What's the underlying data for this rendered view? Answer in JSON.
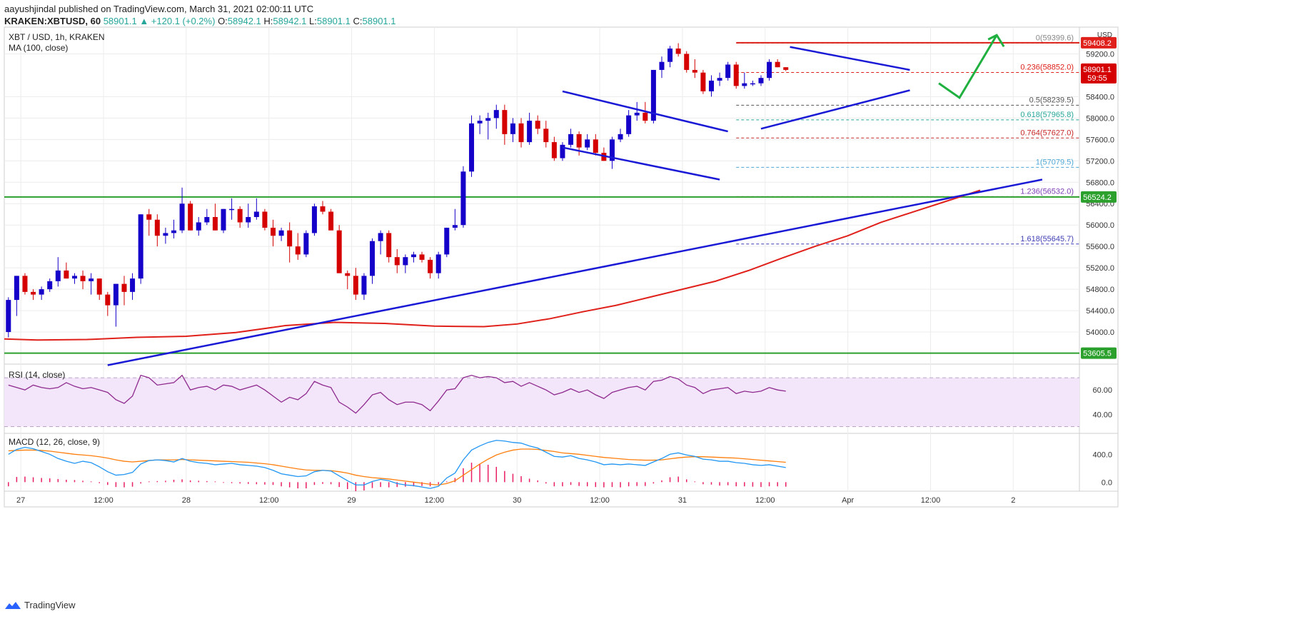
{
  "header": {
    "line1": "aayushjindal published on TradingView.com, March 31, 2021 02:00:11 UTC",
    "symbol": "KRAKEN:XBTUSD, 60",
    "last": "58901.1",
    "change": "▲ +120.1 (+0.2%)",
    "o_label": "O:",
    "o": "58942.1",
    "h_label": "H:",
    "h": "58942.1",
    "l_label": "L:",
    "l": "58901.1",
    "c_label": "C:",
    "c": "58901.1"
  },
  "footer": {
    "brand": "TradingView"
  },
  "colors": {
    "up": "#1400c8",
    "down": "#d50000",
    "ma": "#e0201a",
    "trend": "#1a1ad6",
    "green": "#2ca02c",
    "arrow": "#20b040",
    "rsi": "#8e2a8e",
    "macd": "#2196f3",
    "signal": "#ff7f0e",
    "hist": "#e91e63"
  },
  "chart_data": {
    "type": "candlestick",
    "title": "XBT / USD, 1h, KRAKEN",
    "indicator_label": "MA (100, close)",
    "currency": "USD",
    "ylim": [
      53400,
      59700
    ],
    "yticks": [
      54000,
      54400,
      54800,
      55200,
      55600,
      56000,
      56400,
      56800,
      57200,
      57600,
      58000,
      58400,
      59200
    ],
    "xlim": [
      0,
      130
    ],
    "xticks": [
      {
        "x": 2,
        "label": "27"
      },
      {
        "x": 12,
        "label": "12:00"
      },
      {
        "x": 22,
        "label": "28"
      },
      {
        "x": 32,
        "label": "12:00"
      },
      {
        "x": 42,
        "label": "29"
      },
      {
        "x": 52,
        "label": "12:00"
      },
      {
        "x": 62,
        "label": "30"
      },
      {
        "x": 72,
        "label": "12:00"
      },
      {
        "x": 82,
        "label": "31"
      },
      {
        "x": 92,
        "label": "12:00"
      },
      {
        "x": 102,
        "label": "Apr"
      },
      {
        "x": 112,
        "label": "12:00"
      },
      {
        "x": 122,
        "label": "2"
      }
    ],
    "candles": [
      [
        54000,
        54650,
        53900,
        54600
      ],
      [
        54600,
        55050,
        54300,
        55050
      ],
      [
        55050,
        55100,
        54700,
        54750
      ],
      [
        54750,
        54800,
        54600,
        54700
      ],
      [
        54700,
        54850,
        54600,
        54800
      ],
      [
        54800,
        55000,
        54750,
        54950
      ],
      [
        54950,
        55400,
        54850,
        55150
      ],
      [
        55150,
        55300,
        55000,
        55000
      ],
      [
        55000,
        55100,
        54900,
        55050
      ],
      [
        55050,
        55150,
        54800,
        54950
      ],
      [
        54950,
        55100,
        54700,
        55000
      ],
      [
        55000,
        55000,
        54600,
        54700
      ],
      [
        54700,
        54750,
        54300,
        54500
      ],
      [
        54500,
        54900,
        54100,
        54900
      ],
      [
        54900,
        55050,
        54500,
        54750
      ],
      [
        54750,
        55100,
        54600,
        55000
      ],
      [
        55000,
        56200,
        54900,
        56200
      ],
      [
        56200,
        56300,
        55800,
        56100
      ],
      [
        56100,
        56200,
        55600,
        55800
      ],
      [
        55800,
        55950,
        55650,
        55850
      ],
      [
        55850,
        56100,
        55750,
        55900
      ],
      [
        55900,
        56700,
        55850,
        56400
      ],
      [
        56400,
        56450,
        55900,
        55900
      ],
      [
        55900,
        56150,
        55800,
        56050
      ],
      [
        56050,
        56300,
        56000,
        56150
      ],
      [
        56150,
        56400,
        55900,
        55900
      ],
      [
        55900,
        56300,
        55850,
        56300
      ],
      [
        56300,
        56500,
        56100,
        56300
      ],
      [
        56300,
        56350,
        55950,
        56050
      ],
      [
        56050,
        56400,
        55950,
        56150
      ],
      [
        56150,
        56500,
        56100,
        56250
      ],
      [
        56250,
        56300,
        55900,
        55950
      ],
      [
        55950,
        56100,
        55600,
        55800
      ],
      [
        55800,
        55950,
        55700,
        55900
      ],
      [
        55900,
        56050,
        55300,
        55600
      ],
      [
        55600,
        55850,
        55350,
        55450
      ],
      [
        55450,
        55900,
        55400,
        55850
      ],
      [
        55850,
        56400,
        55800,
        56350
      ],
      [
        56350,
        56450,
        56200,
        56250
      ],
      [
        56250,
        56300,
        55900,
        55900
      ],
      [
        55900,
        56000,
        55100,
        55100
      ],
      [
        55100,
        55150,
        54800,
        55050
      ],
      [
        55050,
        55200,
        54600,
        54700
      ],
      [
        54700,
        55100,
        54600,
        55050
      ],
      [
        55050,
        55750,
        54900,
        55700
      ],
      [
        55700,
        55900,
        55450,
        55850
      ],
      [
        55850,
        55900,
        55300,
        55400
      ],
      [
        55400,
        55550,
        55100,
        55250
      ],
      [
        55250,
        55450,
        55100,
        55400
      ],
      [
        55400,
        55500,
        55300,
        55450
      ],
      [
        55450,
        55500,
        55300,
        55350
      ],
      [
        55350,
        55400,
        55000,
        55100
      ],
      [
        55100,
        55500,
        55000,
        55450
      ],
      [
        55450,
        55950,
        55400,
        55950
      ],
      [
        55950,
        56300,
        55900,
        56000
      ],
      [
        56000,
        57100,
        55950,
        57000
      ],
      [
        57000,
        58050,
        56900,
        57900
      ],
      [
        57900,
        58050,
        57700,
        57950
      ],
      [
        57950,
        58100,
        57600,
        58000
      ],
      [
        58000,
        58250,
        57800,
        58150
      ],
      [
        58150,
        58250,
        57500,
        57700
      ],
      [
        57700,
        58000,
        57550,
        57900
      ],
      [
        57900,
        58000,
        57450,
        57550
      ],
      [
        57550,
        58100,
        57500,
        57950
      ],
      [
        57950,
        58050,
        57700,
        57800
      ],
      [
        57800,
        57950,
        57450,
        57550
      ],
      [
        57550,
        57650,
        57200,
        57250
      ],
      [
        57250,
        57550,
        57200,
        57500
      ],
      [
        57500,
        57800,
        57450,
        57700
      ],
      [
        57700,
        57750,
        57300,
        57450
      ],
      [
        57450,
        57700,
        57400,
        57600
      ],
      [
        57600,
        57700,
        57300,
        57350
      ],
      [
        57350,
        57450,
        57200,
        57200
      ],
      [
        57200,
        57650,
        57050,
        57600
      ],
      [
        57600,
        57800,
        57550,
        57700
      ],
      [
        57700,
        58150,
        57650,
        58050
      ],
      [
        58050,
        58300,
        57950,
        58100
      ],
      [
        58100,
        58300,
        57900,
        57950
      ],
      [
        57950,
        58900,
        57900,
        58900
      ],
      [
        58900,
        59150,
        58750,
        59050
      ],
      [
        59050,
        59350,
        58950,
        59300
      ],
      [
        59300,
        59400,
        59150,
        59200
      ],
      [
        59200,
        59250,
        58850,
        58900
      ],
      [
        58900,
        59100,
        58750,
        58850
      ],
      [
        58850,
        58900,
        58450,
        58500
      ],
      [
        58500,
        58800,
        58400,
        58700
      ],
      [
        58700,
        58850,
        58600,
        58750
      ],
      [
        58750,
        59050,
        58700,
        59000
      ],
      [
        59000,
        59050,
        58550,
        58600
      ],
      [
        58600,
        58850,
        58550,
        58650
      ],
      [
        58650,
        58700,
        58600,
        58650
      ],
      [
        58650,
        58800,
        58600,
        58750
      ],
      [
        58750,
        59100,
        58700,
        59050
      ],
      [
        59050,
        59100,
        58950,
        58950
      ],
      [
        58950,
        58950,
        58880,
        58901
      ]
    ],
    "ma100": [
      [
        0,
        53870
      ],
      [
        4,
        53850
      ],
      [
        10,
        53860
      ],
      [
        16,
        53900
      ],
      [
        22,
        53920
      ],
      [
        28,
        53990
      ],
      [
        34,
        54120
      ],
      [
        40,
        54180
      ],
      [
        46,
        54160
      ],
      [
        52,
        54110
      ],
      [
        58,
        54100
      ],
      [
        62,
        54150
      ],
      [
        66,
        54250
      ],
      [
        70,
        54380
      ],
      [
        74,
        54500
      ],
      [
        78,
        54650
      ],
      [
        82,
        54800
      ],
      [
        86,
        54950
      ],
      [
        90,
        55150
      ],
      [
        94,
        55380
      ],
      [
        98,
        55600
      ],
      [
        102,
        55800
      ],
      [
        106,
        56050
      ],
      [
        110,
        56250
      ],
      [
        114,
        56450
      ],
      [
        118,
        56650
      ]
    ],
    "trendlines": [
      {
        "name": "rising-support",
        "from": [
          12.5,
          53380
        ],
        "to": [
          125.5,
          56850
        ]
      },
      {
        "name": "channel-upper",
        "from": [
          67.5,
          58500
        ],
        "to": [
          87.5,
          57750
        ]
      },
      {
        "name": "channel-lower",
        "from": [
          67.5,
          57450
        ],
        "to": [
          86.5,
          56850
        ]
      },
      {
        "name": "triangle-upper",
        "from": [
          95,
          59330
        ],
        "to": [
          109.5,
          58900
        ]
      },
      {
        "name": "triangle-lower",
        "from": [
          91.5,
          57800
        ],
        "to": [
          109.5,
          58520
        ]
      }
    ],
    "horizontal_levels": [
      {
        "name": "resistance",
        "value": 59408.2,
        "label": "59408.2",
        "color": "#e0201a"
      },
      {
        "name": "support-high",
        "value": 56524.2,
        "label": "56524.2",
        "color": "#2ca02c"
      },
      {
        "name": "support-low",
        "value": 53605.5,
        "label": "53605.5",
        "color": "#2ca02c"
      }
    ],
    "price_tag": {
      "value": 58901.1,
      "label": "58901.1",
      "countdown": "59:55"
    },
    "fibonacci": [
      {
        "ratio": "0",
        "value": 59399.6,
        "label": "0(59399.6)",
        "color": "#888888"
      },
      {
        "ratio": "0.236",
        "value": 58852.0,
        "label": "0.236(58852.0)",
        "color": "#e0201a"
      },
      {
        "ratio": "0.5",
        "value": 58239.5,
        "label": "0.5(58239.5)",
        "color": "#555555"
      },
      {
        "ratio": "0.618",
        "value": 57965.8,
        "label": "0.618(57965.8)",
        "color": "#26a69a"
      },
      {
        "ratio": "0.764",
        "value": 57627.0,
        "label": "0.764(57627.0)",
        "color": "#c62828"
      },
      {
        "ratio": "1",
        "value": 57079.5,
        "label": "1(57079.5)",
        "color": "#4fa8d8"
      },
      {
        "ratio": "1.236",
        "value": 56532.0,
        "label": "1.236(56532.0)",
        "color": "#7b3fb5"
      },
      {
        "ratio": "1.618",
        "value": 55645.7,
        "label": "1.618(55645.7)",
        "color": "#3f3fb5"
      }
    ],
    "forecast_arrow": {
      "from": [
        113,
        58650
      ],
      "mid": [
        115.5,
        58380
      ],
      "to": [
        120,
        59550
      ]
    },
    "rsi": {
      "label": "RSI (14, close)",
      "ylim": [
        25,
        80
      ],
      "yticks": [
        40,
        60
      ],
      "band": [
        30,
        70
      ],
      "values": [
        64,
        62,
        60,
        64,
        62,
        61,
        62,
        66,
        63,
        61,
        62,
        60,
        58,
        52,
        49,
        55,
        72,
        70,
        64,
        65,
        66,
        72,
        60,
        62,
        63,
        60,
        64,
        63,
        60,
        62,
        64,
        60,
        55,
        50,
        54,
        52,
        57,
        67,
        64,
        62,
        50,
        46,
        41,
        48,
        56,
        58,
        52,
        48,
        50,
        50,
        48,
        43,
        51,
        60,
        61,
        70,
        72,
        70,
        71,
        70,
        66,
        67,
        63,
        66,
        63,
        60,
        56,
        58,
        61,
        58,
        60,
        56,
        53,
        58,
        60,
        62,
        63,
        60,
        67,
        68,
        71,
        69,
        64,
        62,
        57,
        60,
        61,
        62,
        57,
        59,
        58,
        59,
        62,
        60,
        59
      ]
    },
    "macd": {
      "label": "MACD (12, 26, close, 9)",
      "ylim": [
        -130,
        690
      ],
      "yticks": [
        0,
        400
      ],
      "macd": [
        400,
        470,
        500,
        480,
        440,
        400,
        340,
        300,
        270,
        300,
        280,
        220,
        150,
        100,
        110,
        140,
        260,
        310,
        320,
        310,
        290,
        340,
        300,
        280,
        270,
        250,
        260,
        270,
        250,
        240,
        230,
        210,
        170,
        120,
        100,
        80,
        90,
        150,
        170,
        160,
        90,
        20,
        -40,
        -40,
        10,
        40,
        20,
        -20,
        -40,
        -50,
        -70,
        -90,
        -60,
        60,
        130,
        320,
        460,
        520,
        570,
        600,
        590,
        570,
        560,
        520,
        490,
        430,
        370,
        360,
        380,
        340,
        320,
        290,
        250,
        260,
        250,
        260,
        250,
        240,
        290,
        340,
        400,
        420,
        390,
        370,
        330,
        320,
        300,
        300,
        280,
        270,
        250,
        240,
        250,
        230,
        210
      ],
      "signal": [
        450,
        455,
        460,
        460,
        455,
        445,
        430,
        415,
        400,
        390,
        380,
        365,
        345,
        320,
        300,
        290,
        300,
        310,
        320,
        320,
        320,
        325,
        320,
        315,
        310,
        305,
        300,
        295,
        290,
        285,
        275,
        265,
        250,
        230,
        210,
        190,
        175,
        170,
        170,
        165,
        150,
        130,
        100,
        80,
        65,
        55,
        45,
        30,
        15,
        0,
        -15,
        -30,
        -40,
        -20,
        20,
        100,
        180,
        260,
        330,
        390,
        430,
        460,
        475,
        475,
        470,
        455,
        440,
        420,
        410,
        400,
        385,
        370,
        355,
        345,
        335,
        325,
        320,
        315,
        315,
        320,
        335,
        350,
        360,
        365,
        365,
        360,
        355,
        350,
        345,
        335,
        325,
        315,
        305,
        295,
        285
      ],
      "hist": [
        -60,
        75,
        80,
        70,
        60,
        55,
        45,
        35,
        30,
        20,
        10,
        -15,
        -40,
        -70,
        -75,
        -65,
        -20,
        10,
        15,
        20,
        35,
        40,
        25,
        20,
        15,
        10,
        -10,
        -15,
        -20,
        -25,
        -30,
        -35,
        -40,
        -60,
        -75,
        -90,
        -90,
        -40,
        -25,
        -30,
        -70,
        -100,
        -130,
        -120,
        -85,
        -70,
        -75,
        -70,
        -65,
        -60,
        -55,
        -60,
        -30,
        10,
        60,
        200,
        280,
        260,
        250,
        220,
        160,
        120,
        85,
        50,
        25,
        -20,
        -60,
        -60,
        -40,
        -55,
        -60,
        -70,
        -75,
        -70,
        -75,
        -60,
        -55,
        -55,
        -20,
        25,
        70,
        80,
        40,
        10,
        -30,
        -35,
        -50,
        -45,
        -60,
        -60,
        -65,
        -70,
        -60,
        -60,
        -65
      ]
    }
  }
}
